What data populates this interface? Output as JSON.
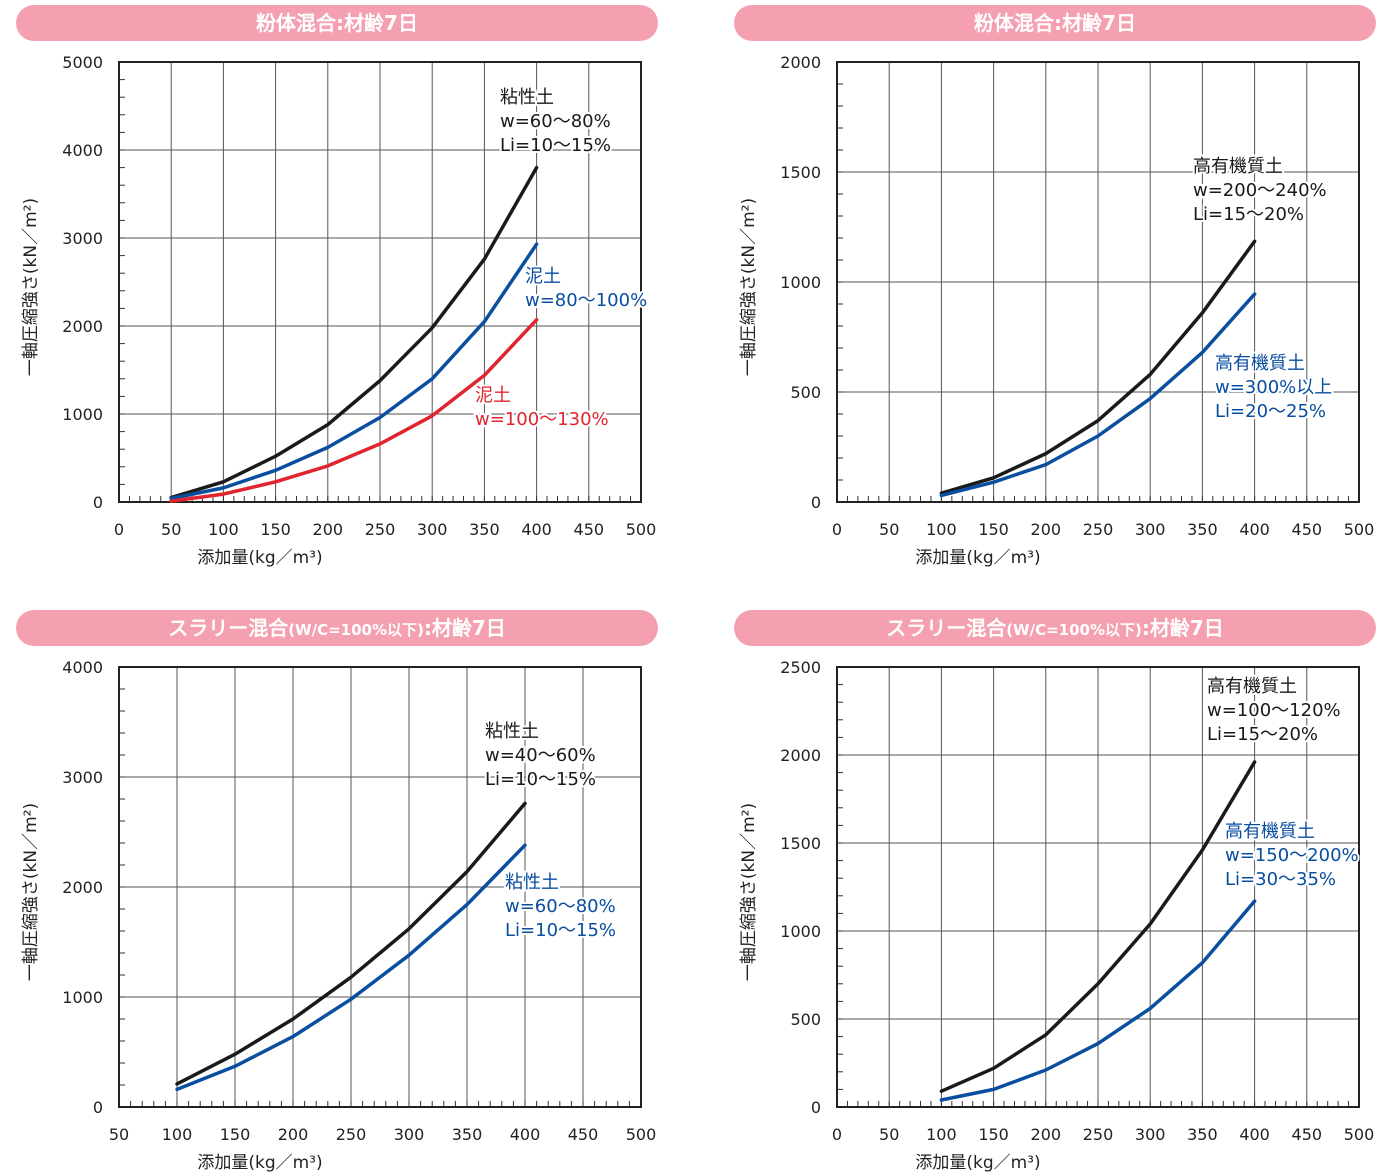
{
  "chart_data": [
    {
      "type": "line",
      "title": "粉体混合:材齢7日",
      "xlabel": "添加量(kg／m³)",
      "ylabel": "一軸圧縮強さ(kN／m²)",
      "xlim": [
        0,
        500
      ],
      "ylim": [
        0,
        5000
      ],
      "xticks": [
        "0",
        "50",
        "100",
        "150",
        "200",
        "250",
        "300",
        "350",
        "400",
        "450",
        "500"
      ],
      "yticks": [
        "0",
        "1000",
        "2000",
        "3000",
        "4000",
        "5000"
      ],
      "grid": true,
      "series": [
        {
          "name": "粘性土",
          "color": "#1a1a1a",
          "label": [
            "粘性土",
            "w=60〜80%",
            "Li=10〜15%"
          ],
          "x": [
            50,
            100,
            150,
            200,
            250,
            300,
            350,
            400
          ],
          "y": [
            50,
            230,
            520,
            880,
            1380,
            1980,
            2760,
            3800
          ]
        },
        {
          "name": "泥土",
          "color": "#0a4ea0",
          "label": [
            "泥土",
            "w=80〜100%"
          ],
          "x": [
            50,
            100,
            150,
            200,
            250,
            300,
            350,
            400
          ],
          "y": [
            40,
            160,
            360,
            620,
            960,
            1400,
            2050,
            2930
          ]
        },
        {
          "name": "泥土",
          "color": "#e0252e",
          "label": [
            "泥土",
            "w=100〜130%"
          ],
          "x": [
            50,
            100,
            150,
            200,
            250,
            300,
            350,
            400
          ],
          "y": [
            10,
            90,
            230,
            410,
            660,
            980,
            1440,
            2070
          ]
        }
      ]
    },
    {
      "type": "line",
      "title": "粉体混合:材齢7日",
      "xlabel": "添加量(kg／m³)",
      "ylabel": "一軸圧縮強さ(kN／m²)",
      "xlim": [
        0,
        500
      ],
      "ylim": [
        0,
        2000
      ],
      "xticks": [
        "0",
        "50",
        "100",
        "150",
        "200",
        "250",
        "300",
        "350",
        "400",
        "450",
        "500"
      ],
      "yticks": [
        "0",
        "500",
        "1000",
        "1500",
        "2000"
      ],
      "grid": true,
      "series": [
        {
          "name": "高有機質土",
          "color": "#1a1a1a",
          "label": [
            "高有機質土",
            "w=200〜240%",
            "Li=15〜20%"
          ],
          "x": [
            100,
            150,
            200,
            250,
            300,
            350,
            400
          ],
          "y": [
            40,
            110,
            220,
            370,
            580,
            860,
            1185
          ]
        },
        {
          "name": "高有機質土",
          "color": "#0a4ea0",
          "label": [
            "高有機質土",
            "w=300%以上",
            "Li=20〜25%"
          ],
          "x": [
            100,
            150,
            200,
            250,
            300,
            350,
            400
          ],
          "y": [
            30,
            90,
            170,
            300,
            470,
            680,
            945
          ]
        }
      ]
    },
    {
      "type": "line",
      "title": "スラリー混合",
      "title_sub": "(W/C=100%以下)",
      "title_tail": ":材齢7日",
      "xlabel": "添加量(kg／m³)",
      "ylabel": "一軸圧縮強さ(kN／m²)",
      "xlim": [
        50,
        500
      ],
      "ylim": [
        0,
        4000
      ],
      "xticks": [
        "50",
        "100",
        "150",
        "200",
        "250",
        "300",
        "350",
        "400",
        "450",
        "500"
      ],
      "yticks": [
        "0",
        "1000",
        "2000",
        "3000",
        "4000"
      ],
      "grid": true,
      "series": [
        {
          "name": "粘性土",
          "color": "#1a1a1a",
          "label": [
            "粘性土",
            "w=40〜60%",
            "Li=10〜15%"
          ],
          "x": [
            100,
            150,
            200,
            250,
            300,
            350,
            400
          ],
          "y": [
            210,
            480,
            800,
            1180,
            1620,
            2140,
            2760
          ]
        },
        {
          "name": "粘性土",
          "color": "#0a4ea0",
          "label": [
            "粘性土",
            "w=60〜80%",
            "Li=10〜15%"
          ],
          "x": [
            100,
            150,
            200,
            250,
            300,
            350,
            400
          ],
          "y": [
            160,
            370,
            640,
            980,
            1380,
            1840,
            2380
          ]
        }
      ]
    },
    {
      "type": "line",
      "title": "スラリー混合",
      "title_sub": "(W/C=100%以下)",
      "title_tail": ":材齢7日",
      "xlabel": "添加量(kg／m³)",
      "ylabel": "一軸圧縮強さ(kN／m²)",
      "xlim": [
        0,
        500
      ],
      "ylim": [
        0,
        2500
      ],
      "xticks": [
        "0",
        "50",
        "100",
        "150",
        "200",
        "250",
        "300",
        "350",
        "400",
        "450",
        "500"
      ],
      "yticks": [
        "0",
        "500",
        "1000",
        "1500",
        "2000",
        "2500"
      ],
      "grid": true,
      "series": [
        {
          "name": "高有機質土",
          "color": "#1a1a1a",
          "label": [
            "高有機質土",
            "w=100〜120%",
            "Li=15〜20%"
          ],
          "x": [
            100,
            150,
            200,
            250,
            300,
            350,
            400
          ],
          "y": [
            90,
            220,
            410,
            700,
            1040,
            1460,
            1960
          ]
        },
        {
          "name": "高有機質土",
          "color": "#0a4ea0",
          "label": [
            "高有機質土",
            "w=150〜200%",
            "Li=30〜35%"
          ],
          "x": [
            100,
            150,
            200,
            250,
            300,
            350,
            400
          ],
          "y": [
            40,
            100,
            210,
            360,
            560,
            820,
            1170
          ]
        }
      ]
    }
  ]
}
